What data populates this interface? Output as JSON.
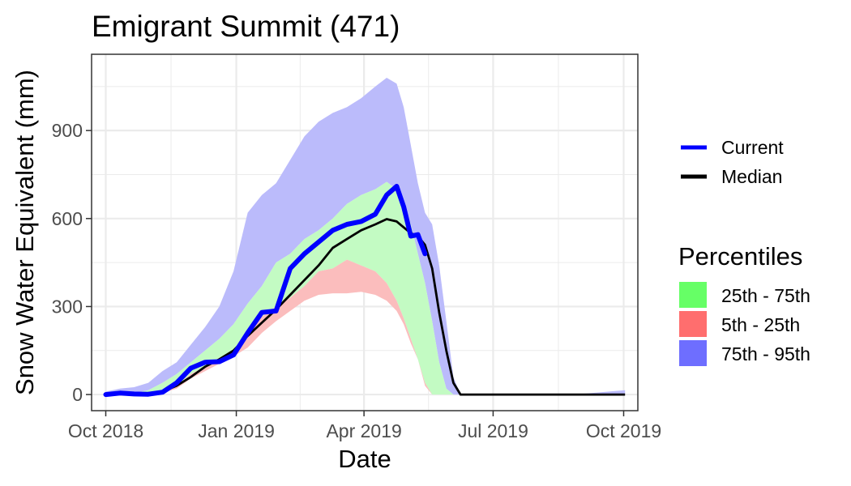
{
  "chart_data": {
    "type": "area",
    "title": "Emigrant Summit (471)",
    "xlabel": "Date",
    "ylabel": "Snow Water Equivalent (mm)",
    "x_ticks": [
      "Oct 2018",
      "Jan 2019",
      "Apr 2019",
      "Jul 2019",
      "Oct 2019"
    ],
    "y_ticks": [
      0,
      300,
      600,
      900
    ],
    "x_unit": "days since Oct 1 2018",
    "xlim": [
      -10,
      375
    ],
    "ylim": [
      -55,
      1160
    ],
    "x": [
      0,
      10,
      20,
      30,
      40,
      50,
      60,
      70,
      80,
      90,
      100,
      110,
      120,
      130,
      140,
      150,
      160,
      170,
      180,
      190,
      198,
      205,
      210,
      215,
      220,
      225,
      230,
      235,
      240,
      245,
      250,
      255,
      260,
      270,
      280,
      300,
      330,
      366
    ],
    "median": [
      0,
      2,
      3,
      5,
      10,
      30,
      60,
      95,
      120,
      150,
      200,
      245,
      290,
      340,
      390,
      440,
      500,
      530,
      560,
      580,
      598,
      590,
      570,
      550,
      540,
      510,
      430,
      280,
      150,
      40,
      0,
      0,
      0,
      0,
      0,
      0,
      0,
      0
    ],
    "current": [
      0,
      5,
      2,
      1,
      8,
      40,
      90,
      110,
      112,
      135,
      210,
      280,
      285,
      430,
      480,
      520,
      560,
      580,
      590,
      615,
      680,
      710,
      640,
      540,
      545,
      480,
      null,
      null,
      null,
      null,
      null,
      null,
      null,
      null,
      null,
      null,
      null,
      null
    ],
    "series": [
      {
        "name": "5th percentile",
        "values": [
          0,
          0,
          0,
          0,
          5,
          20,
          55,
          80,
          105,
          130,
          160,
          210,
          250,
          285,
          320,
          340,
          345,
          345,
          350,
          340,
          320,
          285,
          240,
          175,
          120,
          30,
          0,
          0,
          0,
          0,
          0,
          0,
          0,
          0,
          0,
          0,
          0,
          0
        ]
      },
      {
        "name": "25th percentile",
        "values": [
          0,
          0,
          0,
          2,
          10,
          30,
          70,
          95,
          125,
          150,
          210,
          265,
          300,
          330,
          370,
          420,
          430,
          460,
          440,
          420,
          380,
          320,
          260,
          190,
          120,
          40,
          0,
          0,
          0,
          0,
          0,
          0,
          0,
          0,
          0,
          0,
          0,
          0
        ]
      },
      {
        "name": "75th percentile",
        "values": [
          0,
          2,
          5,
          15,
          40,
          70,
          110,
          150,
          190,
          240,
          310,
          370,
          450,
          480,
          530,
          560,
          600,
          650,
          680,
          700,
          725,
          700,
          640,
          580,
          480,
          380,
          250,
          110,
          20,
          0,
          0,
          0,
          0,
          0,
          0,
          0,
          0,
          0
        ]
      },
      {
        "name": "95th percentile",
        "values": [
          10,
          20,
          25,
          40,
          80,
          110,
          170,
          230,
          300,
          420,
          620,
          680,
          720,
          800,
          880,
          930,
          960,
          980,
          1010,
          1050,
          1080,
          1060,
          980,
          850,
          720,
          620,
          580,
          440,
          250,
          60,
          0,
          0,
          0,
          0,
          0,
          0,
          0,
          15
        ]
      }
    ],
    "legend": {
      "lines": [
        {
          "name": "Current",
          "color": "#0000ff"
        },
        {
          "name": "Median",
          "color": "#000000"
        }
      ],
      "percentiles_title": "Percentiles",
      "bands": [
        {
          "name": "25th - 75th",
          "color": "#66ff66"
        },
        {
          "name": "5th - 25th",
          "color": "#ff6e6e"
        },
        {
          "name": "75th - 95th",
          "color": "#6e6eff"
        }
      ]
    },
    "colors": {
      "band_75_95": "#bbbbfb",
      "band_25_75": "#c3fbc3",
      "band_5_25": "#fbbdbd",
      "grid": "#ebebeb",
      "panel_border": "#333333"
    }
  }
}
